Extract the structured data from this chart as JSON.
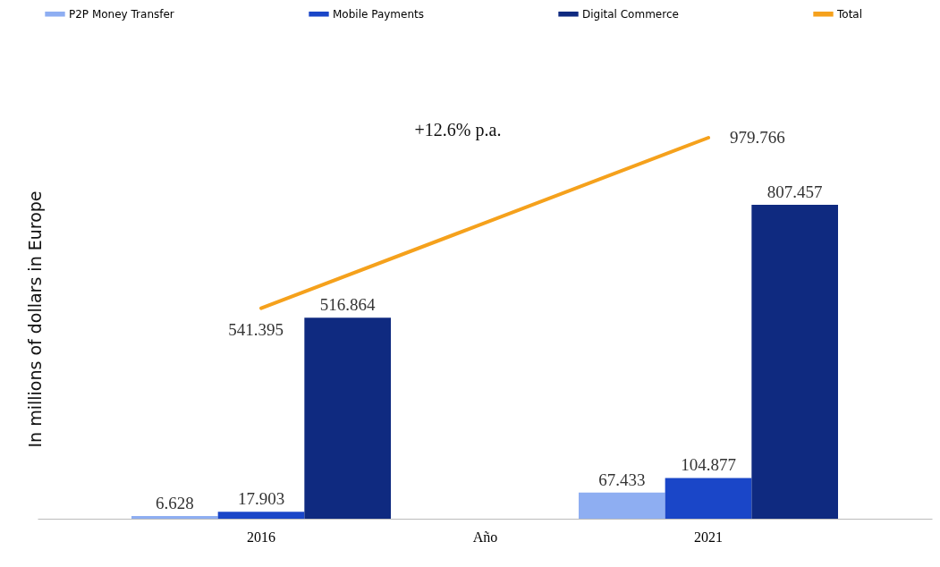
{
  "chart_data": {
    "type": "bar",
    "ylabel": "In millions of dollars in Europe",
    "xlabel": "Año",
    "categories": [
      "2016",
      "2021"
    ],
    "series": [
      {
        "name": "P2P Money Transfer",
        "color": "#8eaef2",
        "values": [
          6.628,
          67.433
        ]
      },
      {
        "name": "Mobile Payments",
        "color": "#1a46c8",
        "values": [
          17.903,
          104.877
        ]
      },
      {
        "name": "Digital Commerce",
        "color": "#0f2a80",
        "values": [
          516.864,
          807.457
        ]
      },
      {
        "name": "Total",
        "type": "line",
        "color": "#f5a11c",
        "values": [
          541.395,
          979.766
        ]
      }
    ],
    "data_labels": true,
    "legend": "top",
    "tick_labels": "x",
    "annotations": [
      "+12.6% p.a."
    ]
  }
}
